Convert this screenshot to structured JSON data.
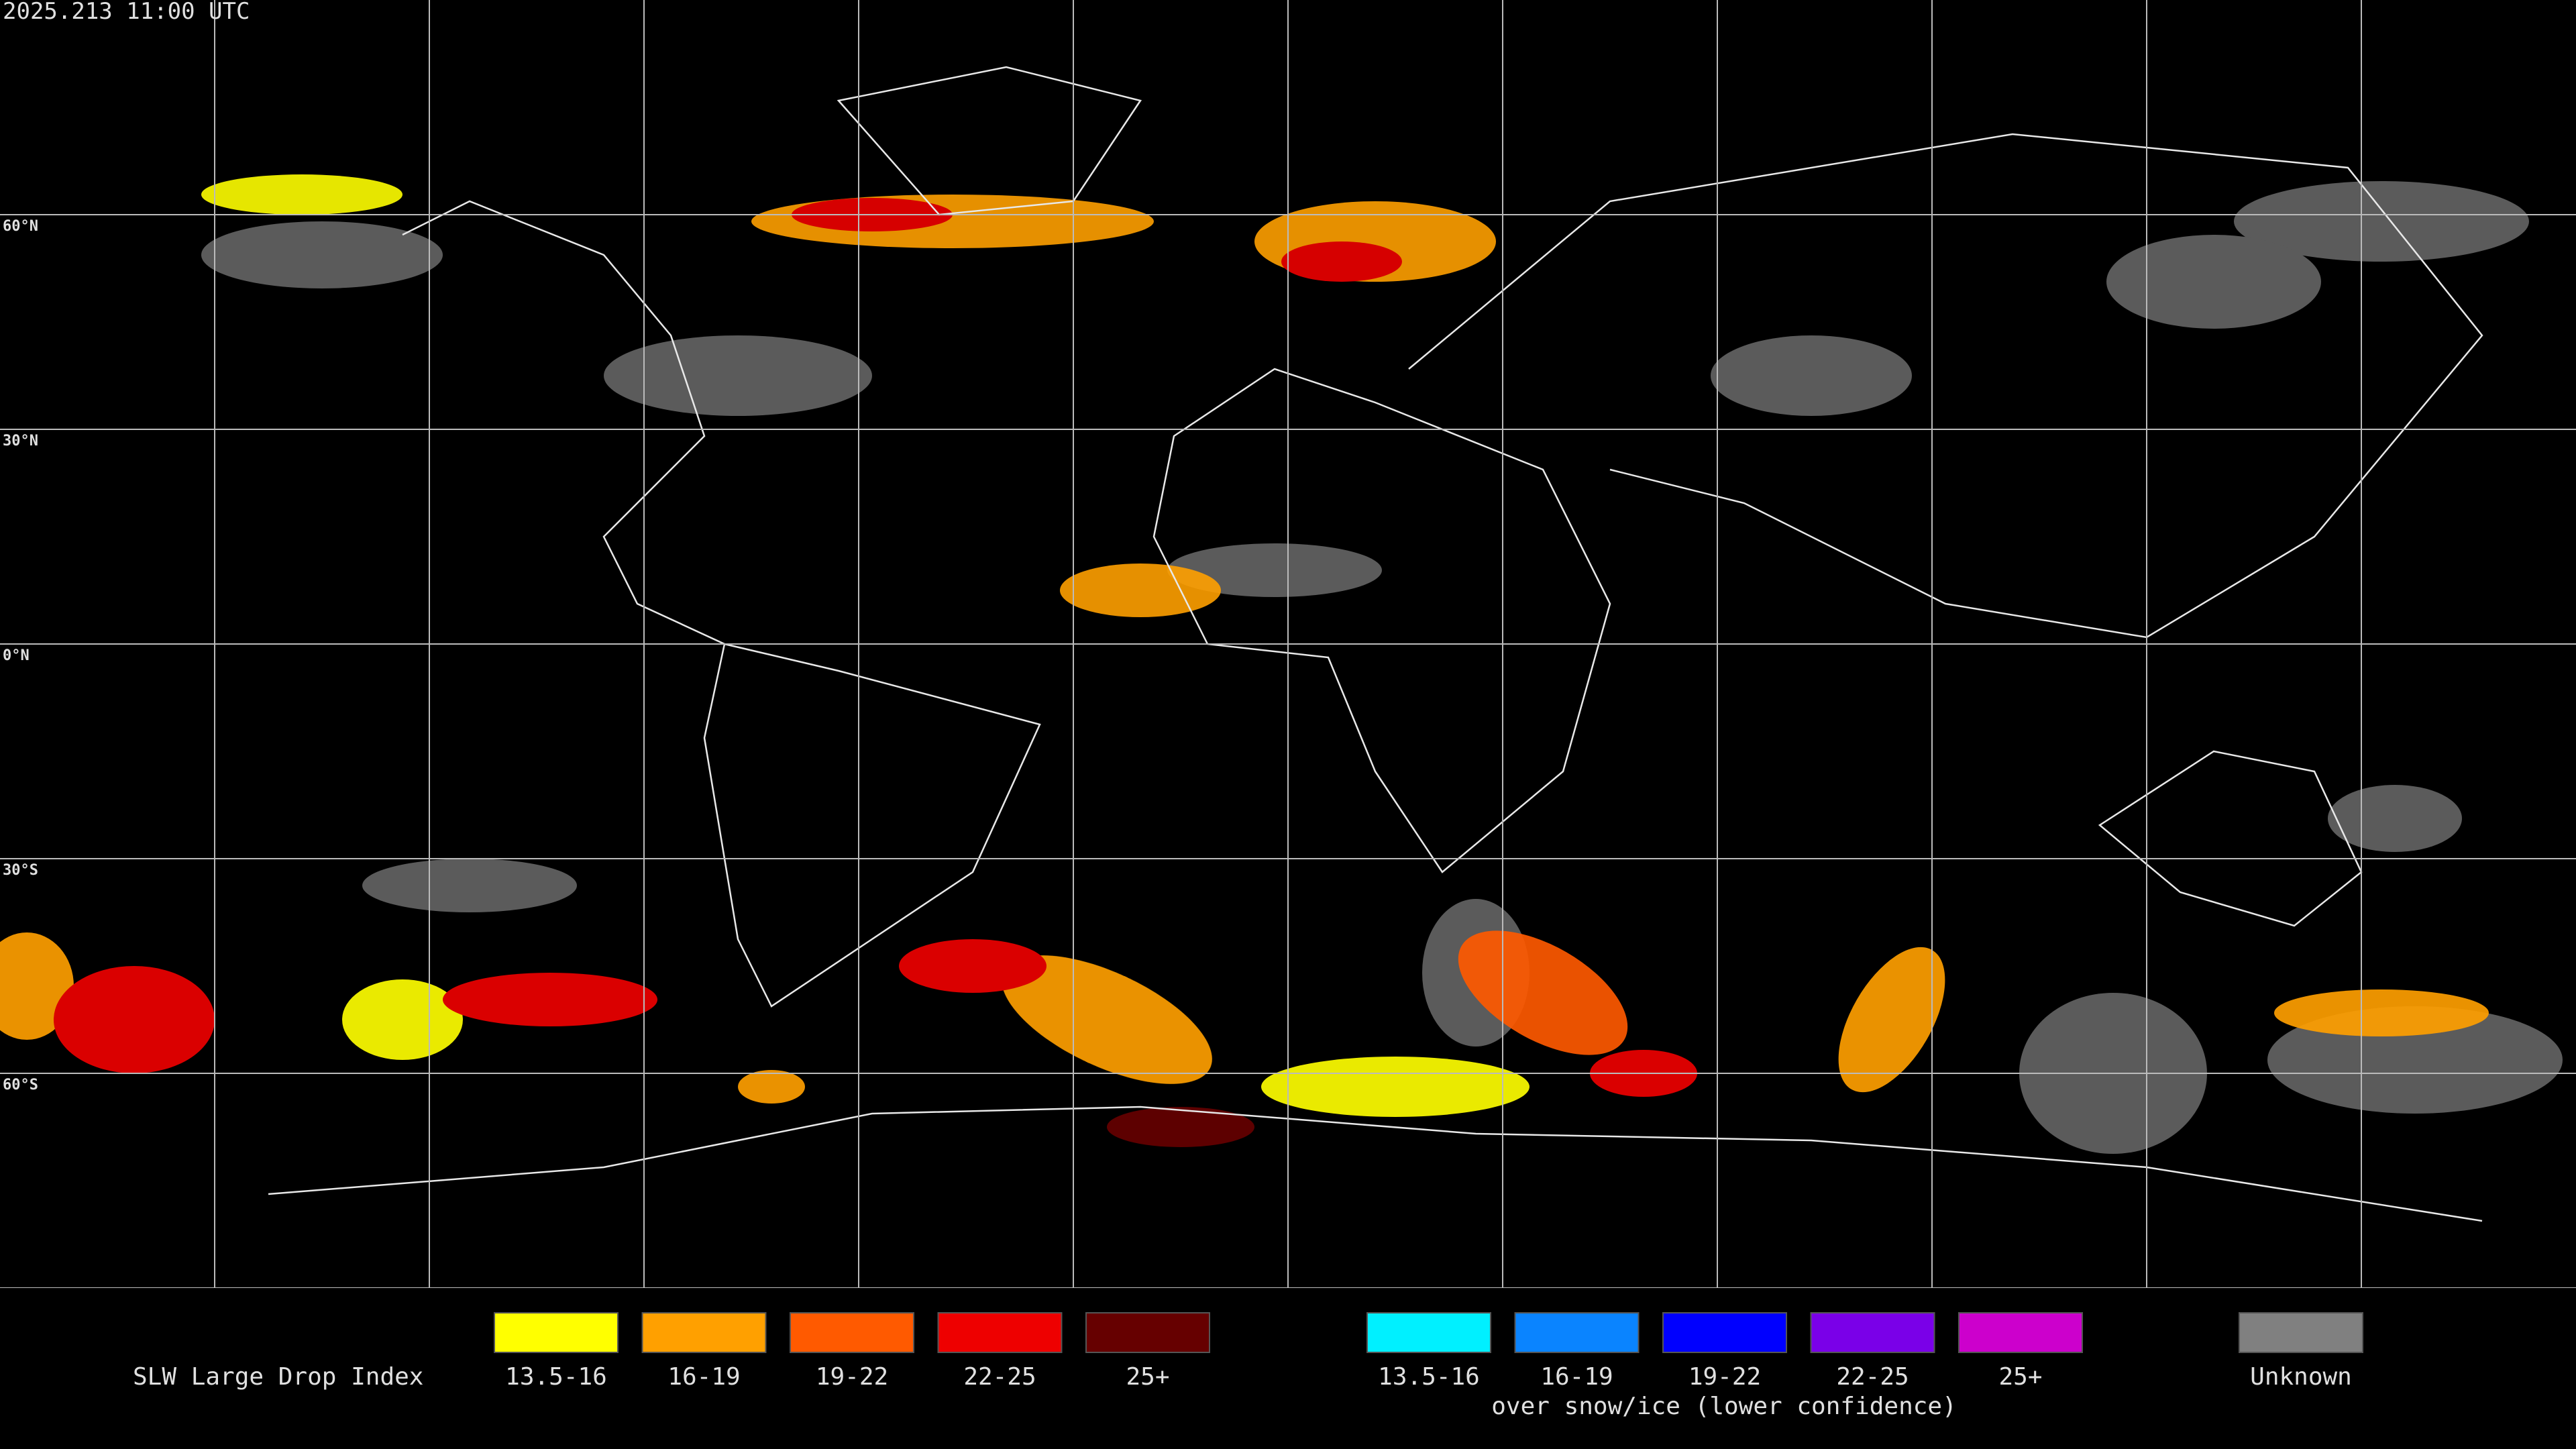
{
  "header": {
    "timestamp": "2025.213 11:00 UTC"
  },
  "map": {
    "latitude_labels": [
      "60°N",
      "30°N",
      "0°N",
      "30°S",
      "60°S"
    ]
  },
  "legend": {
    "title": "SLW Large Drop Index",
    "items": [
      {
        "label": "13.5-16",
        "color": "#ffff00"
      },
      {
        "label": "16-19",
        "color": "#ffa000"
      },
      {
        "label": "19-22",
        "color": "#ff5a00"
      },
      {
        "label": "22-25",
        "color": "#ee0000"
      },
      {
        "label": "25+",
        "color": "#660000"
      }
    ],
    "snow_items": [
      {
        "label": "13.5-16",
        "color": "#00f0ff"
      },
      {
        "label": "16-19",
        "color": "#0a84ff"
      },
      {
        "label": "19-22",
        "color": "#0000ff"
      },
      {
        "label": "22-25",
        "color": "#7a00e8"
      },
      {
        "label": "25+",
        "color": "#cc00cc"
      }
    ],
    "snow_note": "over snow/ice (lower confidence)",
    "unknown": {
      "label": "Unknown",
      "color": "#808080"
    }
  }
}
